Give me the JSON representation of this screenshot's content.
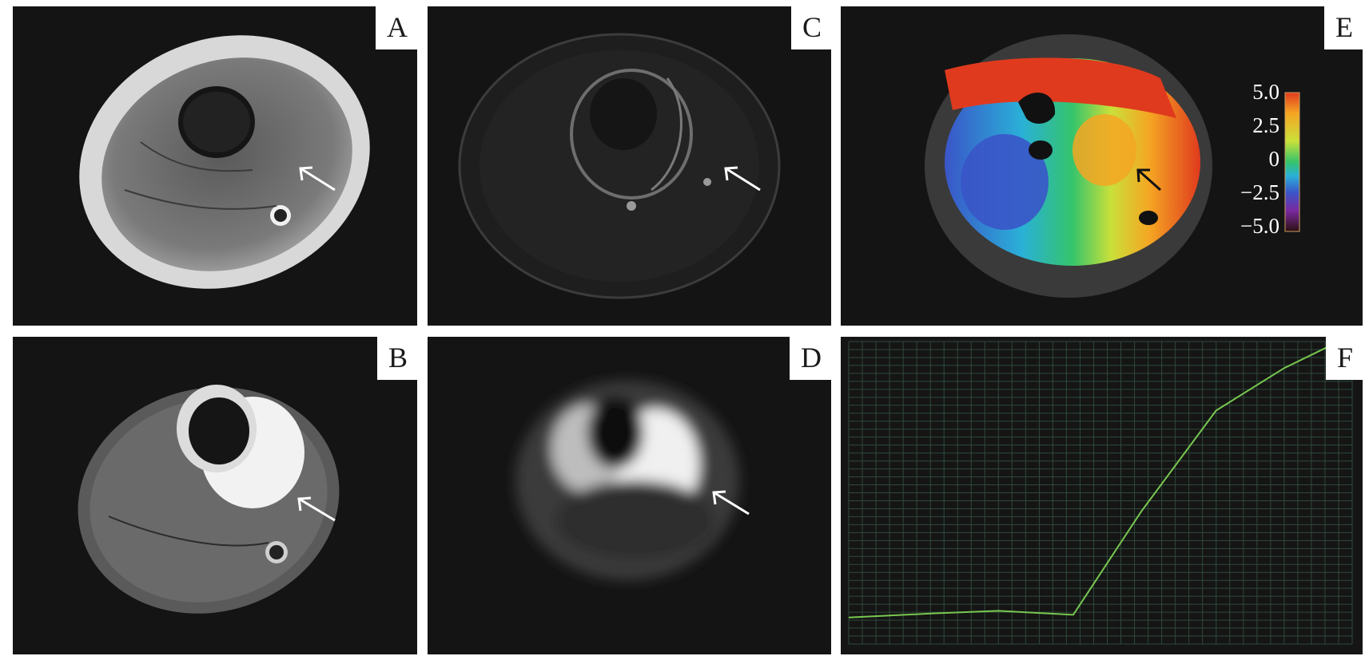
{
  "panels": {
    "a": {
      "label": "A"
    },
    "b": {
      "label": "B"
    },
    "c": {
      "label": "C"
    },
    "d": {
      "label": "D"
    },
    "e": {
      "label": "E"
    },
    "f": {
      "label": "F"
    }
  },
  "colorbar": {
    "ticks": [
      "5.0",
      "2.5",
      "0",
      "−2.5",
      "−5.0"
    ],
    "colors": [
      "#e03a1e",
      "#f5a623",
      "#c9e03a",
      "#35c46b",
      "#2ab0d8",
      "#3a55c8",
      "#7a2aa0",
      "#2a1010"
    ]
  },
  "curve": {
    "color": "#78c850",
    "x_range": [
      0,
      74
    ],
    "y_range": [
      -10,
      104
    ],
    "points": [
      [
        0,
        0
      ],
      [
        12,
        1.5
      ],
      [
        22,
        2.5
      ],
      [
        33,
        1
      ],
      [
        43,
        40
      ],
      [
        54,
        78
      ],
      [
        64,
        94
      ],
      [
        72,
        104
      ]
    ]
  }
}
